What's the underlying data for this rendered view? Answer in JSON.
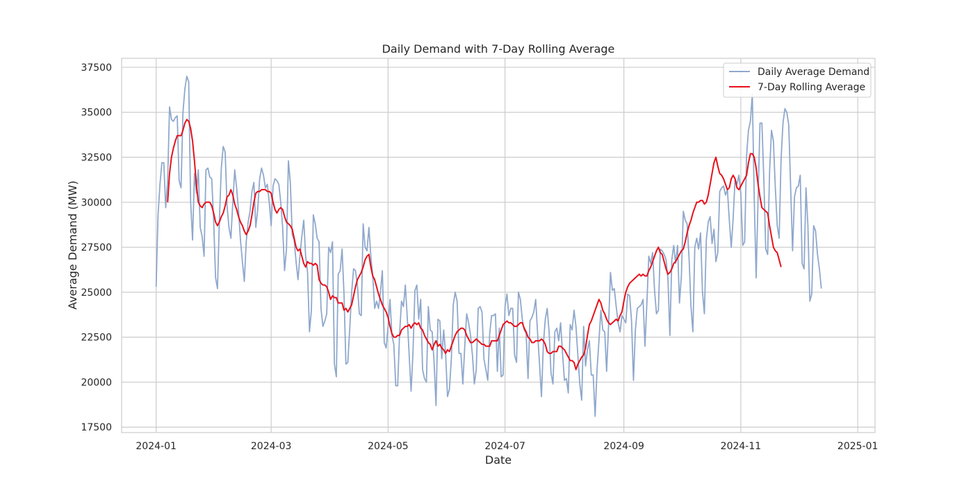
{
  "chart_data": {
    "type": "line",
    "title": "Daily Demand with 7-Day Rolling Average",
    "xlabel": "Date",
    "ylabel": "Average Demand (MW)",
    "xlim": [
      "2023-12-14",
      "2025-01-10"
    ],
    "ylim": [
      17200,
      38000
    ],
    "grid": true,
    "legend_position": "top-right",
    "x_ticks": [
      "2024-01-01",
      "2024-03-01",
      "2024-05-01",
      "2024-07-01",
      "2024-09-01",
      "2024-11-01",
      "2025-01-01"
    ],
    "x_tick_labels": [
      "2024-01",
      "2024-03",
      "2024-05",
      "2024-07",
      "2024-09",
      "2024-11",
      "2025-01"
    ],
    "y_ticks": [
      17500,
      20000,
      22500,
      25000,
      27500,
      30000,
      32500,
      35000,
      37500
    ],
    "y_tick_labels": [
      "17500",
      "20000",
      "22500",
      "25000",
      "27500",
      "30000",
      "32500",
      "35000",
      "37500"
    ],
    "series": [
      {
        "name": "Daily Average Demand",
        "color": "#8fa8cc",
        "start_date": "2024-01-01",
        "values": [
          25300,
          29300,
          31000,
          32200,
          32200,
          29700,
          31200,
          35300,
          34600,
          34500,
          34700,
          34800,
          31200,
          30800,
          35000,
          36300,
          37000,
          36700,
          30000,
          27900,
          31600,
          30500,
          31800,
          28600,
          28100,
          27000,
          31800,
          31900,
          31400,
          31300,
          29000,
          25800,
          25200,
          29000,
          31900,
          33100,
          32800,
          29800,
          28600,
          28000,
          30000,
          31800,
          30800,
          29500,
          27900,
          26700,
          25600,
          27800,
          28900,
          29500,
          30600,
          31100,
          28600,
          29600,
          31300,
          31900,
          31500,
          30800,
          31000,
          30000,
          28700,
          30900,
          31300,
          31200,
          31000,
          30000,
          28600,
          26200,
          27400,
          32300,
          31100,
          28200,
          27900,
          26700,
          25700,
          27000,
          28100,
          29000,
          27000,
          26100,
          22800,
          24000,
          29300,
          28800,
          28000,
          27800,
          24100,
          23100,
          23400,
          23800,
          27500,
          27200,
          27800,
          21000,
          20300,
          26000,
          26200,
          27400,
          24900,
          21000,
          21100,
          23000,
          25000,
          26300,
          26200,
          25400,
          23800,
          23700,
          28800,
          27500,
          27300,
          28600,
          27000,
          25900,
          24100,
          24500,
          24100,
          25000,
          26200,
          22200,
          21900,
          23100,
          24600,
          22600,
          22100,
          19800,
          19800,
          22700,
          24500,
          24200,
          25400,
          23600,
          21500,
          19500,
          21700,
          25100,
          25400,
          23500,
          24600,
          20700,
          20200,
          20000,
          24200,
          22900,
          22800,
          21100,
          18700,
          23500,
          23400,
          21300,
          22900,
          21600,
          19200,
          19600,
          21300,
          24300,
          25000,
          24500,
          21600,
          21600,
          19900,
          22000,
          23800,
          23300,
          22600,
          21500,
          19900,
          20700,
          24100,
          24200,
          23900,
          21300,
          20700,
          20100,
          22700,
          23700,
          23700,
          23800,
          20600,
          23000,
          20300,
          20400,
          24200,
          24900,
          23700,
          24100,
          24100,
          21500,
          21100,
          25000,
          24600,
          23500,
          22900,
          22700,
          20200,
          23400,
          23600,
          23900,
          24600,
          22700,
          21000,
          19200,
          22100,
          23500,
          24100,
          22800,
          20500,
          19900,
          22800,
          23000,
          22300,
          23300,
          21600,
          20100,
          20200,
          19400,
          23200,
          22900,
          24000,
          23100,
          21500,
          19900,
          19000,
          23100,
          20900,
          21800,
          22300,
          20400,
          20400,
          18100,
          20700,
          22300,
          24000,
          22900,
          22800,
          20600,
          23100,
          26100,
          25100,
          25200,
          24200,
          23300,
          22800,
          23700,
          23500,
          23300,
          24900,
          24800,
          23400,
          20100,
          22900,
          24100,
          24200,
          24300,
          24600,
          22000,
          24400,
          27000,
          26600,
          27200,
          25100,
          23800,
          24000,
          27400,
          27300,
          27100,
          26800,
          25700,
          22600,
          26800,
          27600,
          26600,
          27600,
          24400,
          25900,
          29500,
          29000,
          28800,
          26900,
          24200,
          22800,
          27500,
          28000,
          27400,
          28300,
          25000,
          23800,
          27900,
          28900,
          29200,
          27700,
          28500,
          26700,
          27200,
          30600,
          30800,
          30900,
          30400,
          30700,
          29000,
          27500,
          29100,
          31300,
          31000,
          31500,
          30500,
          27600,
          27800,
          32600,
          34000,
          34500,
          36000,
          30200,
          25800,
          30200,
          34400,
          34400,
          31300,
          27400,
          27100,
          31700,
          34000,
          33400,
          30800,
          28700,
          28000,
          32400,
          34400,
          35200,
          35000,
          34300,
          30800,
          27300,
          30300,
          30800,
          30900,
          31500,
          26600,
          26300,
          30800,
          28700,
          24500,
          24900,
          28700,
          28400,
          27100,
          26300,
          25200
        ]
      },
      {
        "name": "7-Day Rolling Average",
        "color": "#e8101a",
        "start_date": "2024-01-07",
        "values": [
          30000,
          31600,
          32500,
          33000,
          33400,
          33700,
          33700,
          33700,
          34000,
          34400,
          34600,
          34500,
          34100,
          33400,
          32300,
          31000,
          30000,
          29800,
          29700,
          29900,
          30000,
          30000,
          30000,
          29800,
          29400,
          28900,
          28700,
          28900,
          29200,
          29400,
          29800,
          30300,
          30400,
          30700,
          30400,
          29900,
          29600,
          29200,
          28900,
          28700,
          28400,
          28200,
          28400,
          28700,
          29300,
          30000,
          30500,
          30600,
          30600,
          30700,
          30700,
          30700,
          30600,
          30600,
          30500,
          30000,
          29600,
          29400,
          29600,
          29700,
          29600,
          29200,
          28900,
          28800,
          28700,
          28500,
          28000,
          27500,
          27300,
          27400,
          27000,
          26600,
          26400,
          26700,
          26600,
          26600,
          26500,
          26600,
          26500,
          25700,
          25500,
          25400,
          25400,
          25300,
          25000,
          24600,
          24800,
          24700,
          24700,
          24400,
          24400,
          24400,
          24000,
          24100,
          23900,
          24100,
          24300,
          24800,
          25300,
          25700,
          25900,
          26100,
          26400,
          26800,
          27000,
          27100,
          26400,
          25900,
          25700,
          25300,
          24900,
          24600,
          24300,
          24100,
          23900,
          23600,
          23100,
          22700,
          22500,
          22500,
          22600,
          22600,
          22900,
          23000,
          23100,
          23100,
          23200,
          23000,
          23200,
          23300,
          23200,
          23300,
          23000,
          22900,
          22600,
          22400,
          22200,
          22100,
          21800,
          22100,
          22300,
          22000,
          22100,
          21900,
          21800,
          21600,
          21800,
          21700,
          22000,
          22300,
          22600,
          22800,
          22900,
          23000,
          23000,
          22900,
          22600,
          22400,
          22200,
          22200,
          22300,
          22400,
          22300,
          22200,
          22100,
          22100,
          22000,
          22000,
          22000,
          22300,
          22300,
          22300,
          22300,
          22600,
          22900,
          23200,
          23300,
          23400,
          23300,
          23300,
          23200,
          23100,
          23100,
          23200,
          23300,
          23300,
          23000,
          22800,
          22500,
          22400,
          22200,
          22200,
          22300,
          22300,
          22300,
          22400,
          22300,
          22100,
          21700,
          21600,
          21600,
          21700,
          21700,
          21700,
          22000,
          22000,
          21900,
          21800,
          21600,
          21400,
          21200,
          21200,
          21100,
          20700,
          21000,
          21200,
          21400,
          21500,
          21900,
          22600,
          23200,
          23400,
          23700,
          24000,
          24300,
          24600,
          24400,
          24000,
          23800,
          23500,
          23300,
          23200,
          23300,
          23400,
          23500,
          23400,
          23700,
          23900,
          24500,
          25000,
          25300,
          25500,
          25600,
          25700,
          25800,
          25900,
          26000,
          25900,
          26000,
          25900,
          25900,
          26200,
          26400,
          26700,
          27000,
          27300,
          27500,
          27200,
          27100,
          26700,
          26300,
          26000,
          26100,
          26300,
          26600,
          26700,
          26900,
          27100,
          27300,
          27400,
          27800,
          28300,
          28700,
          29000,
          29400,
          29700,
          30000,
          30000,
          30100,
          30100,
          29900,
          30000,
          30400,
          31000,
          31600,
          32200,
          32500,
          32000,
          31600,
          31500,
          31300,
          31000,
          30700,
          30800,
          31300,
          31500,
          31300,
          30800,
          30700,
          30900,
          31100,
          31300,
          31500,
          32200,
          32700,
          32700,
          32500,
          31900,
          31000,
          30300,
          29700,
          29600,
          29500,
          29400,
          28700,
          28100,
          27500,
          27300,
          27200,
          26800,
          26400
        ]
      }
    ]
  }
}
